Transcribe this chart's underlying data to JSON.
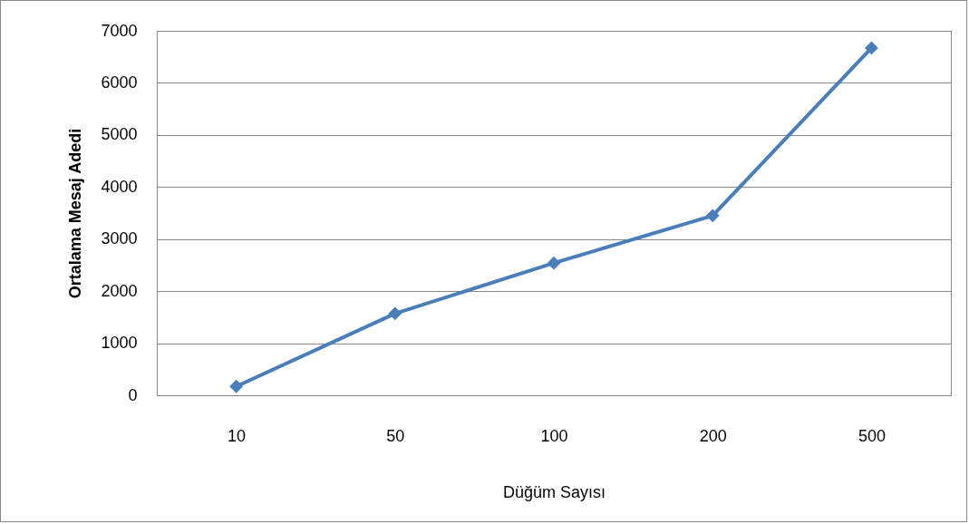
{
  "chart_data": {
    "type": "line",
    "xlabel": "Düğüm Sayısı",
    "ylabel": "Ortalama Mesaj Adedi",
    "categories": [
      "10",
      "50",
      "100",
      "200",
      "500"
    ],
    "series": [
      {
        "color": "#4a7ebb",
        "values": [
          170,
          1570,
          2540,
          3450,
          6670
        ]
      }
    ],
    "ylim": [
      0,
      7000
    ],
    "yticks": [
      0,
      1000,
      2000,
      3000,
      4000,
      5000,
      6000,
      7000
    ],
    "grid": "y",
    "marker": "diamond",
    "line_style": "solid",
    "legend": false
  }
}
